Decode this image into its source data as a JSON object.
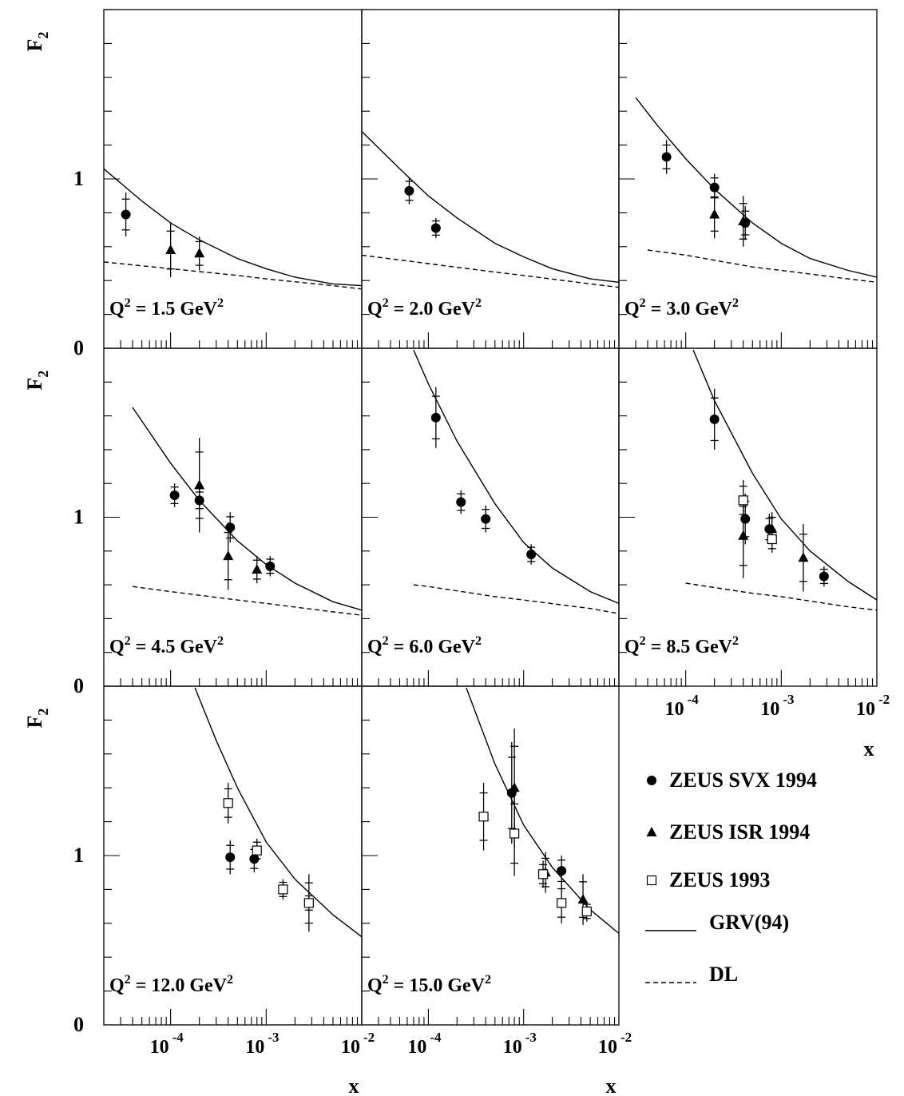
{
  "figure": {
    "y_axis_label": "F",
    "y_axis_label_sub": "2",
    "x_axis_label": "x",
    "ytick_labels": [
      "0",
      "1"
    ],
    "xtick_labels": [
      {
        "base": "10",
        "exp": "-4"
      },
      {
        "base": "10",
        "exp": "-3"
      },
      {
        "base": "10",
        "exp": "-2"
      }
    ]
  },
  "legend": {
    "items": [
      {
        "key": "svx1994",
        "label": "ZEUS SVX 1994",
        "marker": "filled-circle"
      },
      {
        "key": "isr1994",
        "label": "ZEUS ISR 1994",
        "marker": "filled-triangle"
      },
      {
        "key": "zeus1993",
        "label": "ZEUS 1993",
        "marker": "open-square"
      },
      {
        "key": "grv",
        "label": "GRV(94)",
        "line": "solid"
      },
      {
        "key": "dl",
        "label": "DL",
        "line": "dashed"
      }
    ]
  },
  "chart_data": [
    {
      "type": "scatter",
      "q2_value": "1.5",
      "q2_unit": "GeV",
      "xlim": [
        2e-05,
        0.01
      ],
      "ylim": [
        0,
        2
      ],
      "xscale": "log",
      "series": [
        {
          "key": "svx1994",
          "points": [
            {
              "x": 3.4e-05,
              "y": 0.79,
              "err": 0.13
            }
          ]
        },
        {
          "key": "isr1994",
          "points": [
            {
              "x": 0.0001,
              "y": 0.58,
              "err": 0.16
            },
            {
              "x": 0.0002,
              "y": 0.56,
              "err": 0.1
            }
          ]
        },
        {
          "key": "zeus1993",
          "points": []
        }
      ],
      "curves": [
        {
          "key": "grv",
          "points": [
            [
              2e-05,
              1.06
            ],
            [
              5e-05,
              0.87
            ],
            [
              0.0001,
              0.74
            ],
            [
              0.0002,
              0.64
            ],
            [
              0.0005,
              0.53
            ],
            [
              0.001,
              0.47
            ],
            [
              0.002,
              0.42
            ],
            [
              0.005,
              0.38
            ],
            [
              0.01,
              0.37
            ]
          ]
        },
        {
          "key": "dl",
          "points": [
            [
              2e-05,
              0.51
            ],
            [
              0.0001,
              0.47
            ],
            [
              0.0005,
              0.43
            ],
            [
              0.001,
              0.41
            ],
            [
              0.005,
              0.37
            ],
            [
              0.01,
              0.35
            ]
          ]
        }
      ]
    },
    {
      "type": "scatter",
      "q2_value": "2.0",
      "q2_unit": "GeV",
      "xlim": [
        2e-05,
        0.01
      ],
      "ylim": [
        0,
        2
      ],
      "xscale": "log",
      "series": [
        {
          "key": "svx1994",
          "points": [
            {
              "x": 6.3e-05,
              "y": 0.93,
              "err": 0.08
            },
            {
              "x": 0.00012,
              "y": 0.71,
              "err": 0.06
            }
          ]
        },
        {
          "key": "isr1994",
          "points": []
        },
        {
          "key": "zeus1993",
          "points": []
        }
      ],
      "curves": [
        {
          "key": "grv",
          "points": [
            [
              2e-05,
              1.28
            ],
            [
              5e-05,
              1.06
            ],
            [
              0.0001,
              0.9
            ],
            [
              0.0002,
              0.77
            ],
            [
              0.0005,
              0.62
            ],
            [
              0.001,
              0.54
            ],
            [
              0.002,
              0.47
            ],
            [
              0.005,
              0.41
            ],
            [
              0.01,
              0.39
            ]
          ]
        },
        {
          "key": "dl",
          "points": [
            [
              2e-05,
              0.55
            ],
            [
              0.0001,
              0.5
            ],
            [
              0.0005,
              0.45
            ],
            [
              0.001,
              0.43
            ],
            [
              0.005,
              0.38
            ],
            [
              0.01,
              0.36
            ]
          ]
        }
      ]
    },
    {
      "type": "scatter",
      "q2_value": "3.0",
      "q2_unit": "GeV",
      "xlim": [
        2e-05,
        0.01
      ],
      "ylim": [
        0,
        2
      ],
      "xscale": "log",
      "series": [
        {
          "key": "svx1994",
          "points": [
            {
              "x": 6.3e-05,
              "y": 1.13,
              "err": 0.1
            },
            {
              "x": 0.0002,
              "y": 0.95,
              "err": 0.08
            },
            {
              "x": 0.00042,
              "y": 0.74,
              "err": 0.1
            }
          ]
        },
        {
          "key": "isr1994",
          "points": [
            {
              "x": 0.0002,
              "y": 0.79,
              "err": 0.14
            },
            {
              "x": 0.0004,
              "y": 0.75,
              "err": 0.15
            }
          ]
        },
        {
          "key": "zeus1993",
          "points": []
        }
      ],
      "curves": [
        {
          "key": "grv",
          "points": [
            [
              3e-05,
              1.48
            ],
            [
              5e-05,
              1.32
            ],
            [
              0.0001,
              1.12
            ],
            [
              0.0002,
              0.94
            ],
            [
              0.0005,
              0.74
            ],
            [
              0.001,
              0.62
            ],
            [
              0.002,
              0.53
            ],
            [
              0.005,
              0.46
            ],
            [
              0.01,
              0.42
            ]
          ]
        },
        {
          "key": "dl",
          "points": [
            [
              4e-05,
              0.58
            ],
            [
              0.0001,
              0.55
            ],
            [
              0.0005,
              0.48
            ],
            [
              0.001,
              0.46
            ],
            [
              0.005,
              0.41
            ],
            [
              0.01,
              0.39
            ]
          ]
        }
      ]
    },
    {
      "type": "scatter",
      "q2_value": "4.5",
      "q2_unit": "GeV",
      "xlim": [
        2e-05,
        0.01
      ],
      "ylim": [
        0,
        2
      ],
      "xscale": "log",
      "series": [
        {
          "key": "svx1994",
          "points": [
            {
              "x": 0.00011,
              "y": 1.13,
              "err": 0.07
            },
            {
              "x": 0.0002,
              "y": 1.1,
              "err": 0.07
            },
            {
              "x": 0.00042,
              "y": 0.94,
              "err": 0.09
            },
            {
              "x": 0.0011,
              "y": 0.71,
              "err": 0.06
            }
          ]
        },
        {
          "key": "isr1994",
          "points": [
            {
              "x": 0.0002,
              "y": 1.19,
              "err": 0.28
            },
            {
              "x": 0.0004,
              "y": 0.77,
              "err": 0.2
            },
            {
              "x": 0.0008,
              "y": 0.69,
              "err": 0.08
            }
          ]
        },
        {
          "key": "zeus1993",
          "points": []
        }
      ],
      "curves": [
        {
          "key": "grv",
          "points": [
            [
              4e-05,
              1.65
            ],
            [
              0.0001,
              1.32
            ],
            [
              0.0002,
              1.1
            ],
            [
              0.0005,
              0.86
            ],
            [
              0.001,
              0.72
            ],
            [
              0.002,
              0.61
            ],
            [
              0.005,
              0.5
            ],
            [
              0.01,
              0.45
            ]
          ]
        },
        {
          "key": "dl",
          "points": [
            [
              4e-05,
              0.59
            ],
            [
              0.0001,
              0.56
            ],
            [
              0.0005,
              0.51
            ],
            [
              0.001,
              0.49
            ],
            [
              0.005,
              0.44
            ],
            [
              0.01,
              0.42
            ]
          ]
        }
      ]
    },
    {
      "type": "scatter",
      "q2_value": "6.0",
      "q2_unit": "GeV",
      "xlim": [
        2e-05,
        0.01
      ],
      "ylim": [
        0,
        2
      ],
      "xscale": "log",
      "series": [
        {
          "key": "svx1994",
          "points": [
            {
              "x": 0.00012,
              "y": 1.59,
              "err": 0.18
            },
            {
              "x": 0.00022,
              "y": 1.09,
              "err": 0.07
            },
            {
              "x": 0.0004,
              "y": 0.99,
              "err": 0.08
            },
            {
              "x": 0.0012,
              "y": 0.78,
              "err": 0.06
            }
          ]
        },
        {
          "key": "isr1994",
          "points": []
        },
        {
          "key": "zeus1993",
          "points": []
        }
      ],
      "curves": [
        {
          "key": "grv",
          "points": [
            [
              7e-05,
              1.99
            ],
            [
              0.0001,
              1.79
            ],
            [
              0.0002,
              1.45
            ],
            [
              0.0005,
              1.08
            ],
            [
              0.001,
              0.85
            ],
            [
              0.002,
              0.7
            ],
            [
              0.005,
              0.56
            ],
            [
              0.01,
              0.49
            ]
          ]
        },
        {
          "key": "dl",
          "points": [
            [
              7e-05,
              0.6
            ],
            [
              0.0001,
              0.59
            ],
            [
              0.0005,
              0.53
            ],
            [
              0.001,
              0.51
            ],
            [
              0.005,
              0.46
            ],
            [
              0.01,
              0.43
            ]
          ]
        }
      ]
    },
    {
      "type": "scatter",
      "q2_value": "8.5",
      "q2_unit": "GeV",
      "xlim": [
        2e-05,
        0.01
      ],
      "ylim": [
        0,
        2
      ],
      "xscale": "log",
      "series": [
        {
          "key": "svx1994",
          "points": [
            {
              "x": 0.0002,
              "y": 1.58,
              "err": 0.18
            },
            {
              "x": 0.00042,
              "y": 0.99,
              "err": 0.15
            },
            {
              "x": 0.00075,
              "y": 0.93,
              "err": 0.09
            },
            {
              "x": 0.0028,
              "y": 0.65,
              "err": 0.06
            }
          ]
        },
        {
          "key": "isr1994",
          "points": [
            {
              "x": 0.0004,
              "y": 0.89,
              "err": 0.25
            },
            {
              "x": 0.0008,
              "y": 0.93,
              "err": 0.1
            },
            {
              "x": 0.0017,
              "y": 0.76,
              "err": 0.2
            }
          ]
        },
        {
          "key": "zeus1993",
          "points": [
            {
              "x": 0.0004,
              "y": 1.1,
              "err": 0.12
            },
            {
              "x": 0.0008,
              "y": 0.87,
              "err": 0.08
            }
          ]
        }
      ],
      "curves": [
        {
          "key": "grv",
          "points": [
            [
              0.00012,
              1.99
            ],
            [
              0.0002,
              1.69
            ],
            [
              0.0005,
              1.26
            ],
            [
              0.001,
              0.99
            ],
            [
              0.002,
              0.8
            ],
            [
              0.005,
              0.62
            ],
            [
              0.01,
              0.51
            ]
          ]
        },
        {
          "key": "dl",
          "points": [
            [
              0.0001,
              0.61
            ],
            [
              0.0005,
              0.55
            ],
            [
              0.001,
              0.53
            ],
            [
              0.005,
              0.47
            ],
            [
              0.01,
              0.45
            ]
          ]
        }
      ]
    },
    {
      "type": "scatter",
      "q2_value": "12.0",
      "q2_unit": "GeV",
      "xlim": [
        2e-05,
        0.01
      ],
      "ylim": [
        0,
        2
      ],
      "xscale": "log",
      "series": [
        {
          "key": "svx1994",
          "points": [
            {
              "x": 0.00042,
              "y": 0.99,
              "err": 0.1
            },
            {
              "x": 0.00075,
              "y": 0.98,
              "err": 0.08
            },
            {
              "x": 0.0028,
              "y": 0.72,
              "err": 0.06
            }
          ]
        },
        {
          "key": "isr1994",
          "points": []
        },
        {
          "key": "zeus1993",
          "points": [
            {
              "x": 0.0004,
              "y": 1.31,
              "err": 0.12
            },
            {
              "x": 0.0008,
              "y": 1.03,
              "err": 0.07
            },
            {
              "x": 0.0015,
              "y": 0.8,
              "err": 0.06
            },
            {
              "x": 0.0028,
              "y": 0.72,
              "err": 0.17
            }
          ]
        }
      ],
      "curves": [
        {
          "key": "grv",
          "points": [
            [
              0.00018,
              1.99
            ],
            [
              0.0003,
              1.68
            ],
            [
              0.0005,
              1.4
            ],
            [
              0.001,
              1.08
            ],
            [
              0.002,
              0.86
            ],
            [
              0.005,
              0.65
            ],
            [
              0.01,
              0.52
            ]
          ]
        }
      ]
    },
    {
      "type": "scatter",
      "q2_value": "15.0",
      "q2_unit": "GeV",
      "xlim": [
        2e-05,
        0.01
      ],
      "ylim": [
        0,
        2
      ],
      "xscale": "log",
      "series": [
        {
          "key": "svx1994",
          "points": [
            {
              "x": 0.00075,
              "y": 1.37,
              "err": 0.3
            },
            {
              "x": 0.0025,
              "y": 0.91,
              "err": 0.09
            }
          ]
        },
        {
          "key": "isr1994",
          "points": [
            {
              "x": 0.0008,
              "y": 1.4,
              "err": 0.35
            },
            {
              "x": 0.0017,
              "y": 0.9,
              "err": 0.12
            },
            {
              "x": 0.0042,
              "y": 0.74,
              "err": 0.15
            }
          ]
        },
        {
          "key": "zeus1993",
          "points": [
            {
              "x": 0.00038,
              "y": 1.23,
              "err": 0.2
            },
            {
              "x": 0.0008,
              "y": 1.13,
              "err": 0.25
            },
            {
              "x": 0.0016,
              "y": 0.89,
              "err": 0.08
            },
            {
              "x": 0.0025,
              "y": 0.72,
              "err": 0.12
            },
            {
              "x": 0.0046,
              "y": 0.67,
              "err": 0.06
            }
          ]
        }
      ],
      "curves": [
        {
          "key": "grv",
          "points": [
            [
              0.00025,
              1.99
            ],
            [
              0.0005,
              1.54
            ],
            [
              0.001,
              1.18
            ],
            [
              0.002,
              0.93
            ],
            [
              0.005,
              0.68
            ],
            [
              0.01,
              0.54
            ]
          ]
        }
      ]
    }
  ]
}
